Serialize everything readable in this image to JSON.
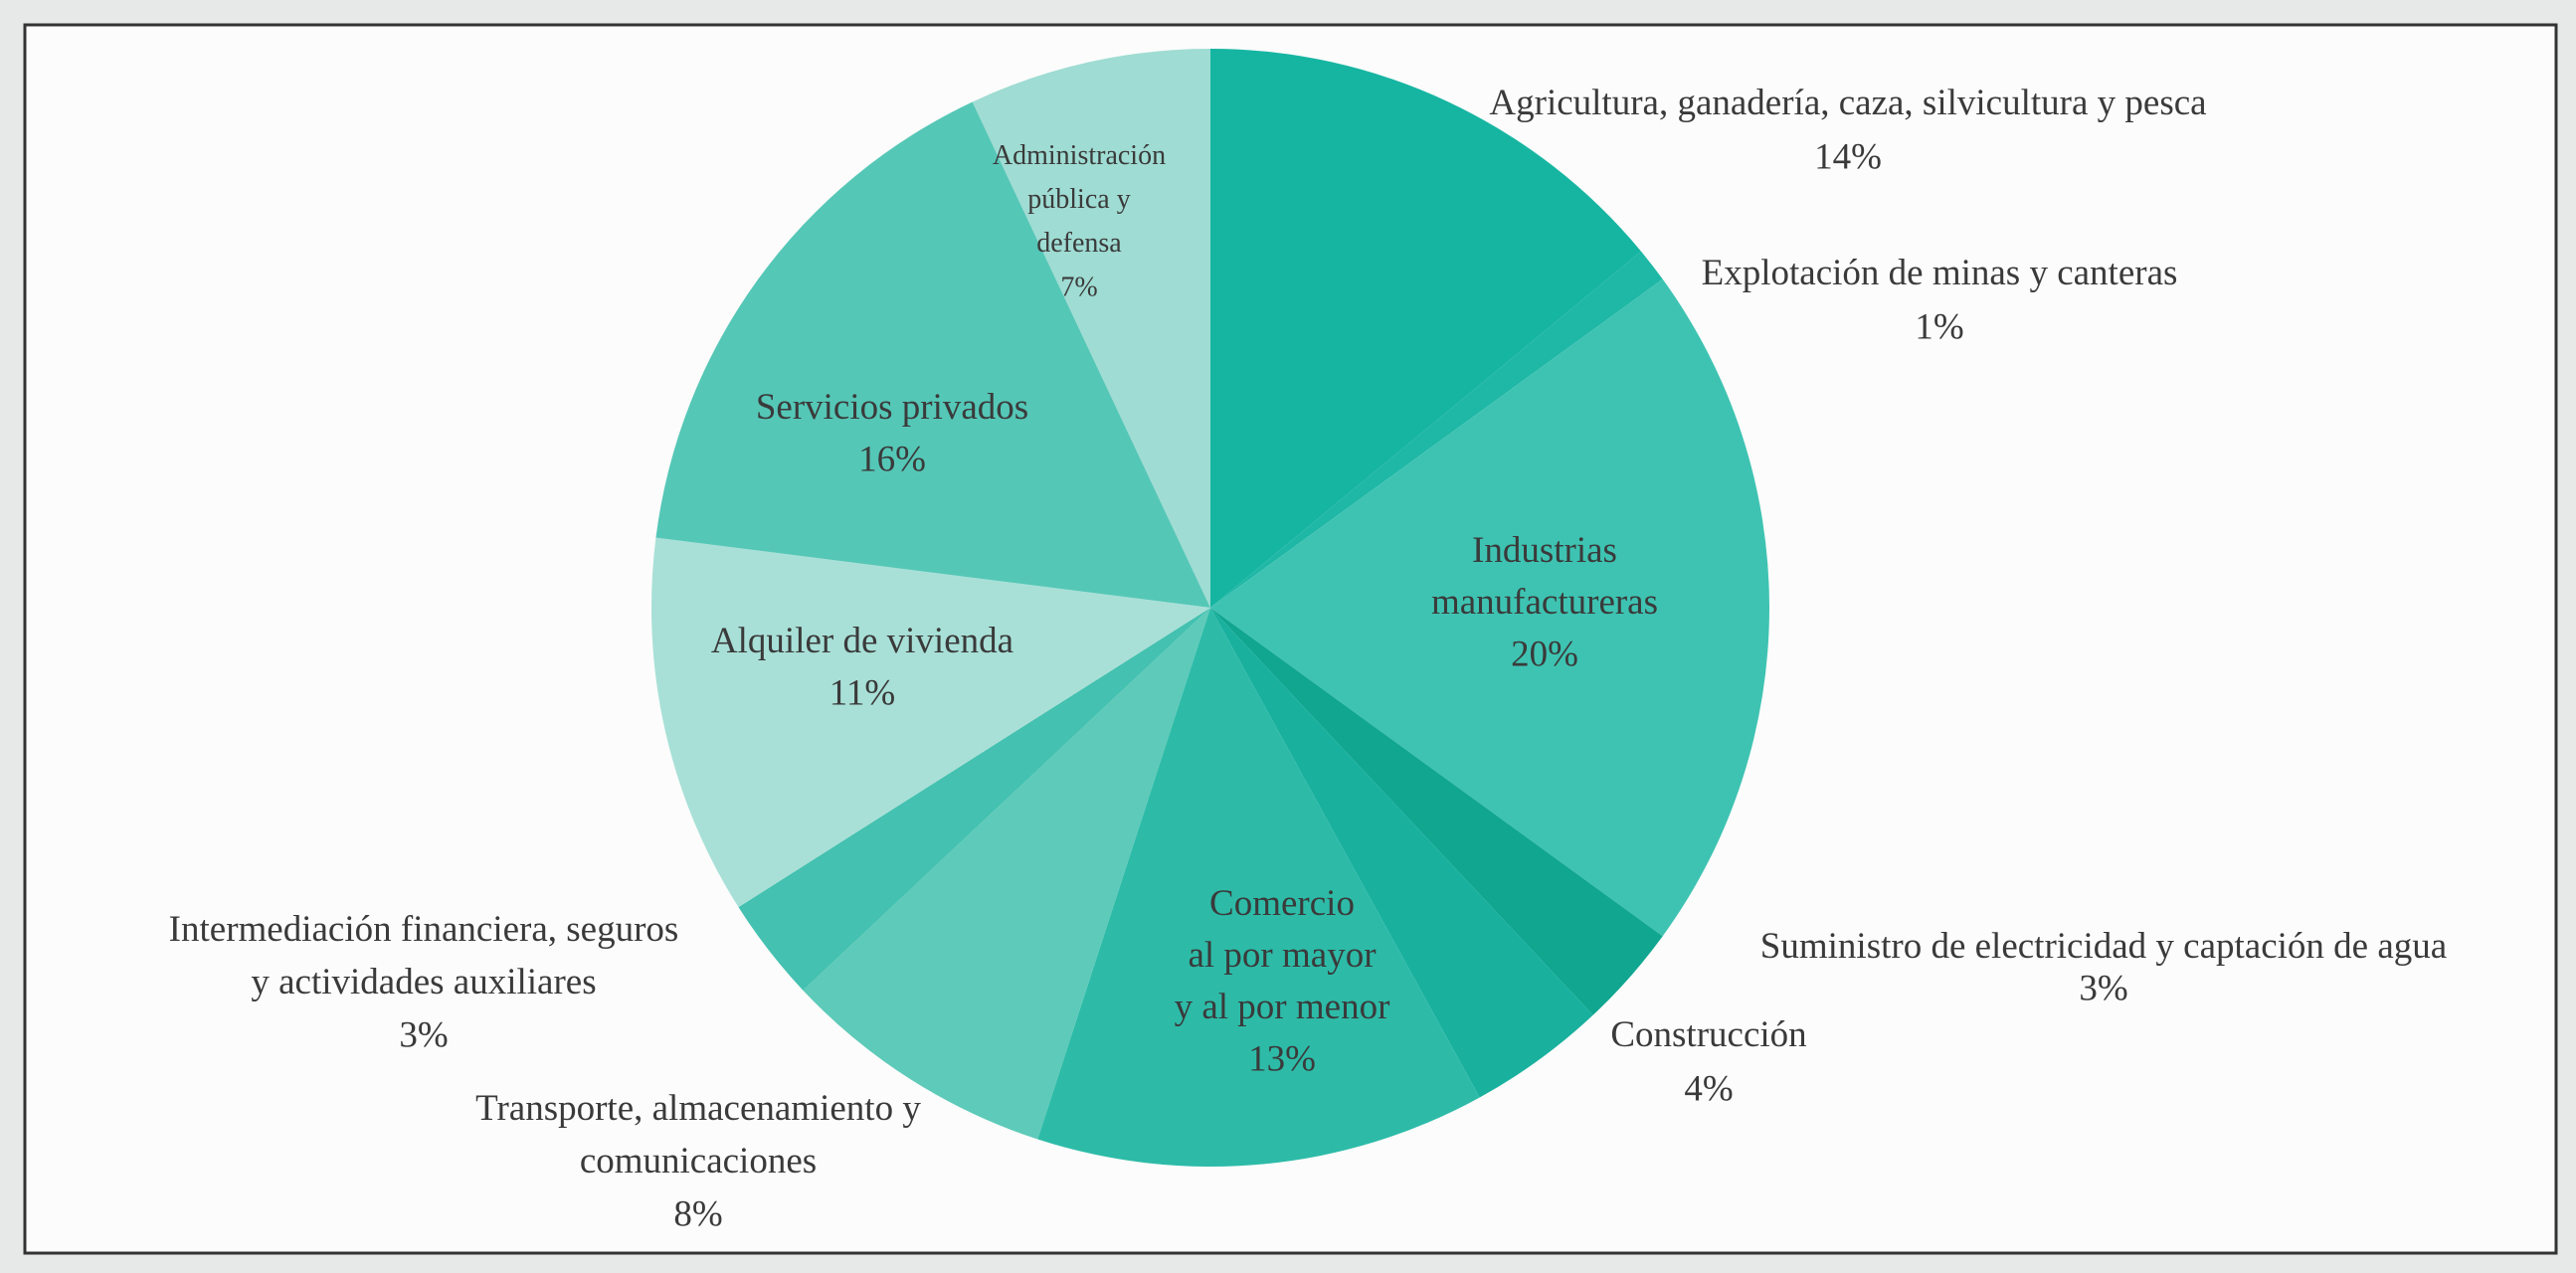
{
  "chart_data": {
    "type": "pie",
    "categories": [
      "Agricultura, ganadería, caza, silvicultura y pesca",
      "Explotación de minas y canteras",
      "Industrias\nmanufactureras",
      "Suministro de electricidad y captación de agua",
      "Construcción",
      "Comercio\nal por mayor\ny al por menor",
      "Transporte, almacenamiento y\ncomunicaciones",
      "Intermediación financiera, seguros\ny actividades auxiliares",
      "Alquiler de vivienda",
      "Servicios privados",
      "Administración\npública y\ndefensa"
    ],
    "values": [
      14,
      1,
      20,
      3,
      4,
      13,
      8,
      3,
      11,
      16,
      7
    ],
    "value_labels": [
      "14%",
      "1%",
      "20%",
      "3%",
      "4%",
      "13%",
      "8%",
      "3%",
      "11%",
      "16%",
      "7%"
    ],
    "colors": [
      "#16b5a2",
      "#1fb7a5",
      "#3ec3b2",
      "#10a690",
      "#19b09e",
      "#2dbba8",
      "#5ecab9",
      "#44c1b0",
      "#a8e0d7",
      "#55c7b7",
      "#9fdcd3"
    ]
  }
}
